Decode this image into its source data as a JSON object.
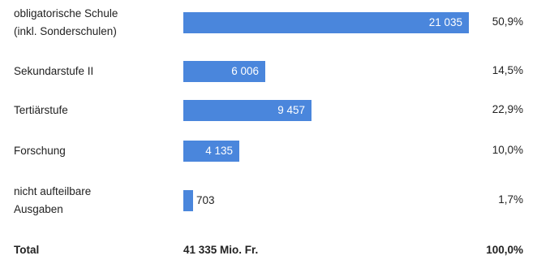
{
  "colors": {
    "bar": "#4a86dc",
    "text": "#222222",
    "value_inside": "#ffffff"
  },
  "chart_data": {
    "type": "bar",
    "orientation": "horizontal",
    "categories": [
      "obligatorische Schule\n(inkl. Sonderschulen)",
      "Sekundarstufe II",
      "Tertiärstufe",
      "Forschung",
      "nicht aufteilbare\nAusgaben"
    ],
    "values": [
      21035,
      6006,
      9457,
      4135,
      703
    ],
    "value_labels": [
      "21 035",
      "6 006",
      "9 457",
      "4 135",
      "703"
    ],
    "percent_labels": [
      "50,9%",
      "14,5%",
      "22,9%",
      "10,0%",
      "1,7%"
    ],
    "xlim": [
      0,
      21035
    ],
    "grid": false,
    "legend": "none"
  },
  "total": {
    "label": "Total",
    "value": "41 335 Mio. Fr.",
    "percent": "100,0%"
  }
}
